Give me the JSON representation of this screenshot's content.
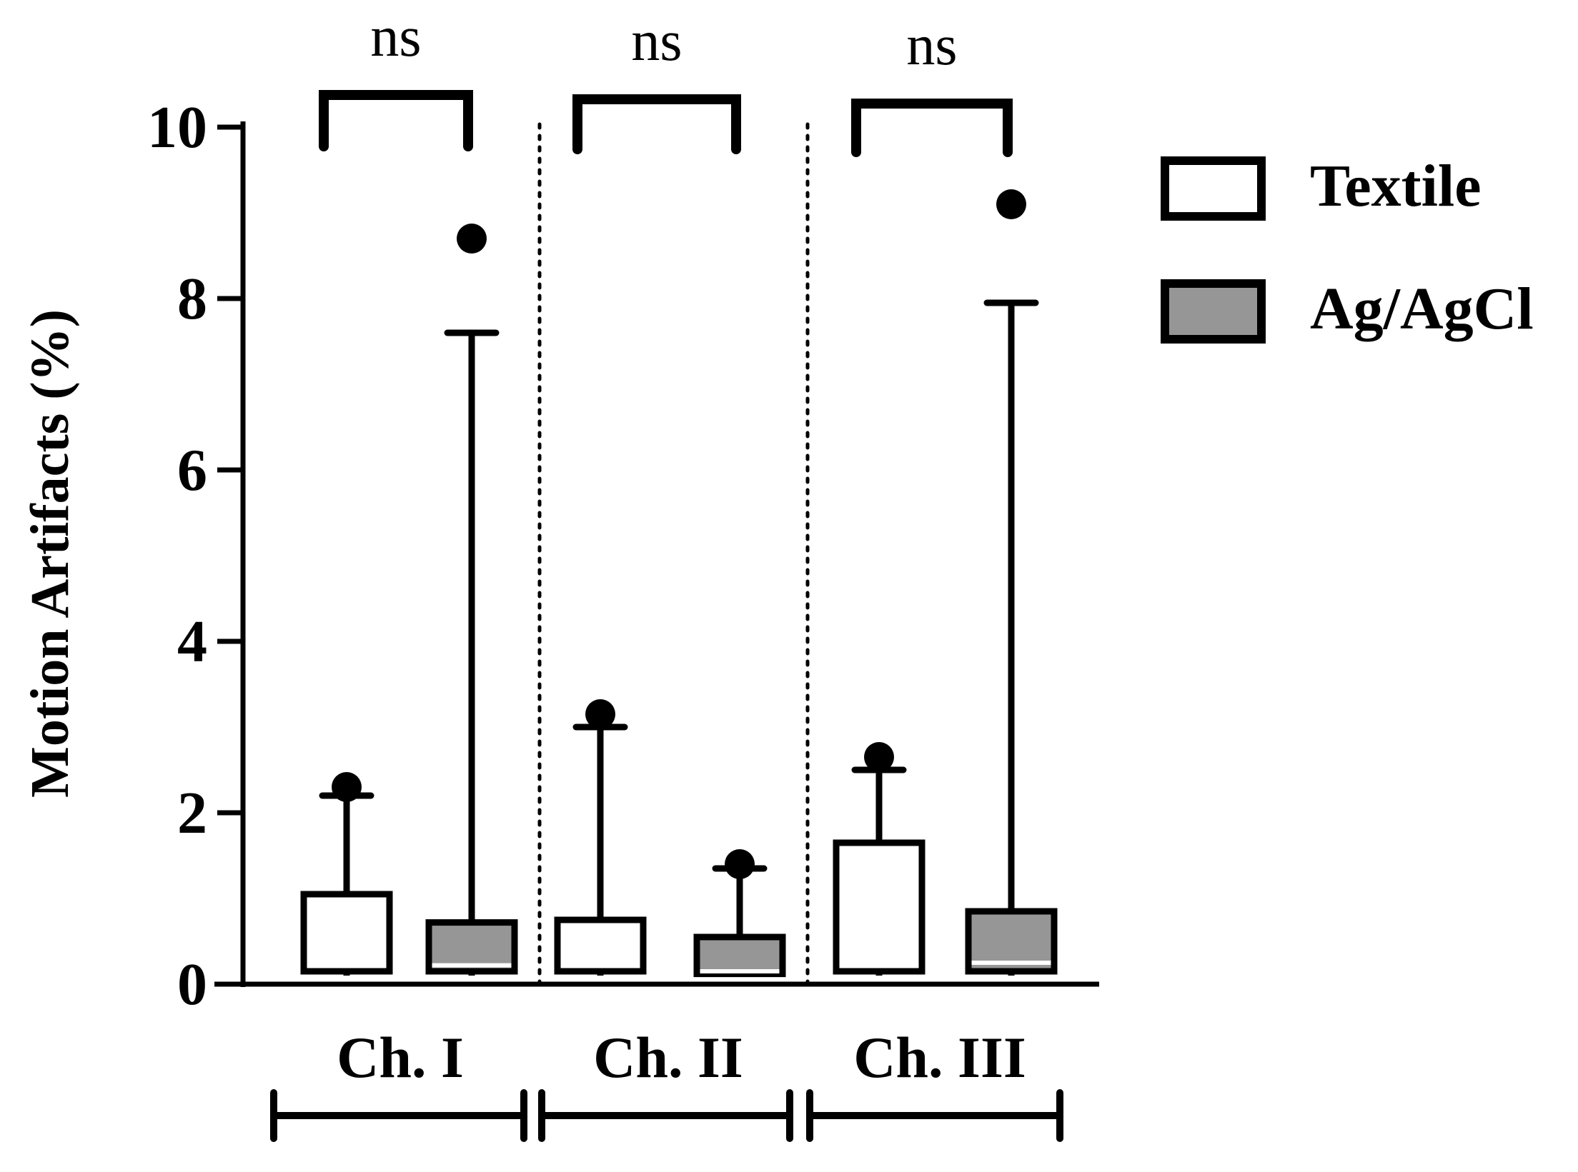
{
  "chart_data": {
    "type": "box",
    "title": "",
    "xlabel": "",
    "ylabel": "Motion Artifacts (%)",
    "ylim": [
      0,
      10
    ],
    "yticks": [
      0,
      2,
      4,
      6,
      8,
      10
    ],
    "grid": false,
    "legend_position": "right",
    "groups": [
      "Ch. I",
      "Ch. II",
      "Ch. III"
    ],
    "significance": [
      "ns",
      "ns",
      "ns"
    ],
    "series": [
      {
        "name": "Textile",
        "fill": "#ffffff",
        "boxes": [
          {
            "group": "Ch. I",
            "min": 0.1,
            "q1": 0.15,
            "median": 0.35,
            "q3": 1.05,
            "max": 2.2,
            "outliers": [
              2.3
            ]
          },
          {
            "group": "Ch. II",
            "min": 0.1,
            "q1": 0.15,
            "median": 0.35,
            "q3": 0.75,
            "max": 3.0,
            "outliers": [
              3.15
            ]
          },
          {
            "group": "Ch. III",
            "min": 0.1,
            "q1": 0.15,
            "median": 0.25,
            "q3": 1.65,
            "max": 2.5,
            "outliers": [
              2.65
            ]
          }
        ]
      },
      {
        "name": "Ag/AgCl",
        "fill": "#969696",
        "boxes": [
          {
            "group": "Ch. I",
            "min": 0.1,
            "q1": 0.15,
            "median": 0.22,
            "q3": 0.72,
            "max": 7.6,
            "outliers": [
              8.7
            ]
          },
          {
            "group": "Ch. II",
            "min": 0.1,
            "q1": 0.12,
            "median": 0.15,
            "q3": 0.55,
            "max": 1.35,
            "outliers": [
              1.4
            ]
          },
          {
            "group": "Ch. III",
            "min": 0.1,
            "q1": 0.15,
            "median": 0.25,
            "q3": 0.85,
            "max": 7.95,
            "outliers": [
              9.1
            ]
          }
        ]
      }
    ]
  }
}
